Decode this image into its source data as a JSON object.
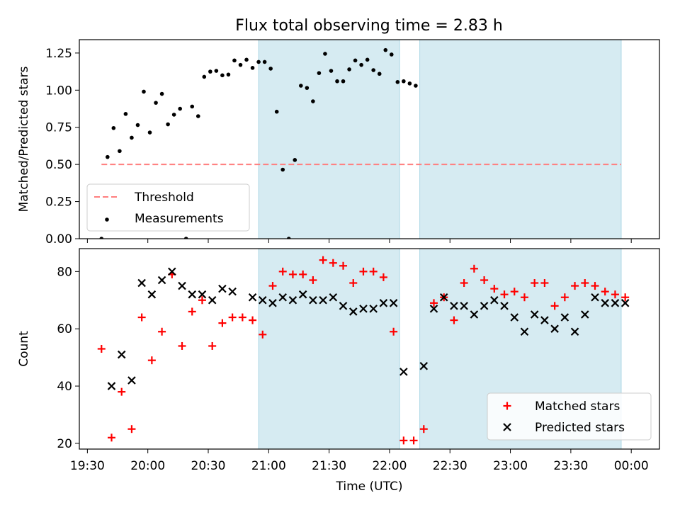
{
  "title": "Flux total observing time = 2.83 h",
  "colors": {
    "shade": "#add8e6",
    "threshold": "#ff7f7f",
    "measurements": "#000000",
    "matched": "#ff0000",
    "predicted": "#000000"
  },
  "chart_data": [
    {
      "type": "scatter",
      "ylabel": "Matched/Predicted stars",
      "ylim": [
        0.0,
        1.34
      ],
      "yticks": [
        "0.00",
        "0.25",
        "0.50",
        "0.75",
        "1.00",
        "1.25"
      ],
      "xlim": [
        "19:26",
        "00:14"
      ],
      "shaded_intervals": [
        [
          "20:55",
          "22:05"
        ],
        [
          "22:15",
          "23:55"
        ]
      ],
      "threshold": {
        "label": "Threshold",
        "y": 0.5,
        "x_range": [
          "19:37",
          "23:55"
        ],
        "style": "dashed"
      },
      "legend": {
        "position": "lower-left",
        "entries": [
          "Threshold",
          "Measurements"
        ]
      },
      "series": [
        {
          "name": "Measurements",
          "marker": "dot",
          "points": [
            [
              "19:37",
              0.0
            ],
            [
              "19:40",
              0.55
            ],
            [
              "19:43",
              0.745
            ],
            [
              "19:46",
              0.59
            ],
            [
              "19:49",
              0.84
            ],
            [
              "19:52",
              0.68
            ],
            [
              "19:55",
              0.765
            ],
            [
              "19:58",
              0.99
            ],
            [
              "20:01",
              0.715
            ],
            [
              "20:04",
              0.915
            ],
            [
              "20:07",
              0.975
            ],
            [
              "20:10",
              0.77
            ],
            [
              "20:13",
              0.835
            ],
            [
              "20:16",
              0.875
            ],
            [
              "20:19",
              0.0
            ],
            [
              "20:22",
              0.89
            ],
            [
              "20:25",
              0.825
            ],
            [
              "20:28",
              1.09
            ],
            [
              "20:31",
              1.125
            ],
            [
              "20:34",
              1.13
            ],
            [
              "20:37",
              1.1
            ],
            [
              "20:40",
              1.105
            ],
            [
              "20:43",
              1.2
            ],
            [
              "20:46",
              1.17
            ],
            [
              "20:49",
              1.205
            ],
            [
              "20:52",
              1.15
            ],
            [
              "20:55",
              1.19
            ],
            [
              "20:58",
              1.19
            ],
            [
              "21:01",
              1.145
            ],
            [
              "21:04",
              0.855
            ],
            [
              "21:07",
              0.465
            ],
            [
              "21:10",
              0.0
            ],
            [
              "21:13",
              0.53
            ],
            [
              "21:16",
              1.03
            ],
            [
              "21:19",
              1.015
            ],
            [
              "21:22",
              0.925
            ],
            [
              "21:25",
              1.115
            ],
            [
              "21:28",
              1.245
            ],
            [
              "21:31",
              1.13
            ],
            [
              "21:34",
              1.06
            ],
            [
              "21:37",
              1.06
            ],
            [
              "21:40",
              1.14
            ],
            [
              "21:43",
              1.2
            ],
            [
              "21:46",
              1.17
            ],
            [
              "21:49",
              1.205
            ],
            [
              "21:52",
              1.135
            ],
            [
              "21:55",
              1.11
            ],
            [
              "21:58",
              1.27
            ],
            [
              "22:01",
              1.24
            ],
            [
              "22:04",
              1.055
            ],
            [
              "22:07",
              1.06
            ],
            [
              "22:10",
              1.045
            ],
            [
              "22:13",
              1.03
            ]
          ]
        }
      ]
    },
    {
      "type": "scatter",
      "xlabel": "Time (UTC)",
      "ylabel": "Count",
      "ylim": [
        18,
        88
      ],
      "yticks": [
        "20",
        "40",
        "60",
        "80"
      ],
      "xlim": [
        "19:26",
        "00:14"
      ],
      "xticks": [
        "19:30",
        "20:00",
        "20:30",
        "21:00",
        "21:30",
        "22:00",
        "22:30",
        "23:00",
        "23:30",
        "00:00"
      ],
      "shaded_intervals": [
        [
          "20:55",
          "22:05"
        ],
        [
          "22:15",
          "23:55"
        ]
      ],
      "legend": {
        "position": "lower-right",
        "entries": [
          "Matched stars",
          "Predicted stars"
        ]
      },
      "series": [
        {
          "name": "Matched stars",
          "marker": "plus",
          "points": [
            [
              "19:37",
              53
            ],
            [
              "19:42",
              22
            ],
            [
              "19:47",
              38
            ],
            [
              "19:52",
              25
            ],
            [
              "19:57",
              64
            ],
            [
              "20:02",
              49
            ],
            [
              "20:07",
              59
            ],
            [
              "20:12",
              79
            ],
            [
              "20:17",
              54
            ],
            [
              "20:22",
              66
            ],
            [
              "20:27",
              70
            ],
            [
              "20:32",
              54
            ],
            [
              "20:37",
              62
            ],
            [
              "20:42",
              64
            ],
            [
              "20:47",
              64
            ],
            [
              "20:52",
              63
            ],
            [
              "20:57",
              58
            ],
            [
              "21:02",
              75
            ],
            [
              "21:07",
              80
            ],
            [
              "21:12",
              79
            ],
            [
              "21:17",
              79
            ],
            [
              "21:22",
              77
            ],
            [
              "21:27",
              84
            ],
            [
              "21:32",
              83
            ],
            [
              "21:37",
              82
            ],
            [
              "21:42",
              76
            ],
            [
              "21:47",
              80
            ],
            [
              "21:52",
              80
            ],
            [
              "21:57",
              78
            ],
            [
              "22:02",
              59
            ],
            [
              "22:07",
              21
            ],
            [
              "22:12",
              21
            ],
            [
              "22:17",
              25
            ],
            [
              "22:22",
              69
            ],
            [
              "22:27",
              71
            ],
            [
              "22:32",
              63
            ],
            [
              "22:37",
              76
            ],
            [
              "22:42",
              81
            ],
            [
              "22:47",
              77
            ],
            [
              "22:52",
              74
            ],
            [
              "22:57",
              72
            ],
            [
              "23:02",
              73
            ],
            [
              "23:07",
              71
            ],
            [
              "23:12",
              76
            ],
            [
              "23:17",
              76
            ],
            [
              "23:22",
              68
            ],
            [
              "23:27",
              71
            ],
            [
              "23:32",
              75
            ],
            [
              "23:37",
              76
            ],
            [
              "23:42",
              75
            ],
            [
              "23:47",
              73
            ],
            [
              "23:52",
              72
            ],
            [
              "23:57",
              71
            ]
          ]
        },
        {
          "name": "Predicted stars",
          "marker": "x",
          "points": [
            [
              "19:42",
              40
            ],
            [
              "19:47",
              51
            ],
            [
              "19:52",
              42
            ],
            [
              "19:57",
              76
            ],
            [
              "20:02",
              72
            ],
            [
              "20:07",
              77
            ],
            [
              "20:12",
              80
            ],
            [
              "20:17",
              75
            ],
            [
              "20:22",
              72
            ],
            [
              "20:27",
              72
            ],
            [
              "20:32",
              70
            ],
            [
              "20:37",
              74
            ],
            [
              "20:42",
              73
            ],
            [
              "20:52",
              71
            ],
            [
              "20:57",
              70
            ],
            [
              "21:02",
              69
            ],
            [
              "21:07",
              71
            ],
            [
              "21:12",
              70
            ],
            [
              "21:17",
              72
            ],
            [
              "21:22",
              70
            ],
            [
              "21:27",
              70
            ],
            [
              "21:32",
              71
            ],
            [
              "21:37",
              68
            ],
            [
              "21:42",
              66
            ],
            [
              "21:47",
              67
            ],
            [
              "21:52",
              67
            ],
            [
              "21:57",
              69
            ],
            [
              "22:02",
              69
            ],
            [
              "22:07",
              45
            ],
            [
              "22:17",
              47
            ],
            [
              "22:22",
              67
            ],
            [
              "22:27",
              71
            ],
            [
              "22:32",
              68
            ],
            [
              "22:37",
              68
            ],
            [
              "22:42",
              65
            ],
            [
              "22:47",
              68
            ],
            [
              "22:52",
              70
            ],
            [
              "22:57",
              68
            ],
            [
              "23:02",
              64
            ],
            [
              "23:07",
              59
            ],
            [
              "23:12",
              65
            ],
            [
              "23:17",
              63
            ],
            [
              "23:22",
              60
            ],
            [
              "23:27",
              64
            ],
            [
              "23:32",
              59
            ],
            [
              "23:37",
              65
            ],
            [
              "23:42",
              71
            ],
            [
              "23:47",
              69
            ],
            [
              "23:52",
              69
            ],
            [
              "23:57",
              69
            ]
          ]
        }
      ]
    }
  ]
}
